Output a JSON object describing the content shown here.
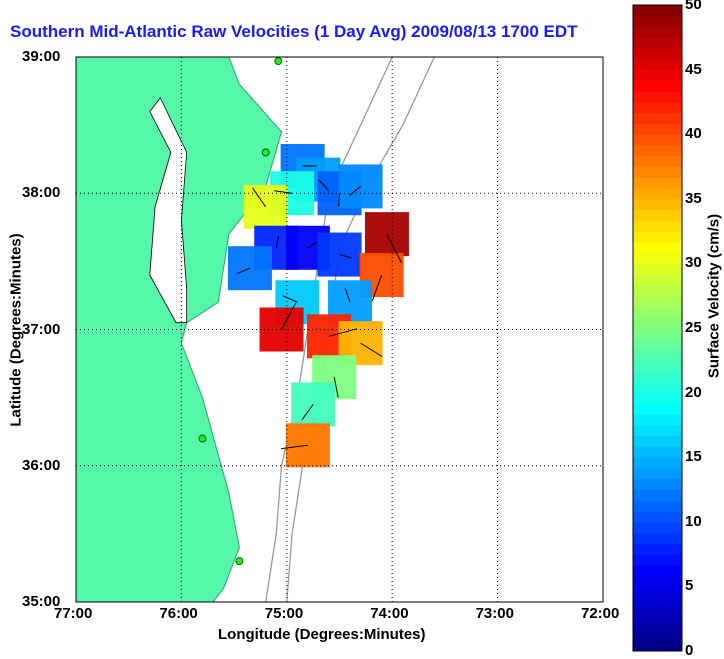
{
  "chart_data": {
    "type": "heatmap",
    "title": "Southern Mid-Atlantic Raw Velocities (1 Day Avg) 2009/08/13 1700 EDT",
    "xlabel": "Longitude (Degrees:Minutes)",
    "ylabel": "Latitude (Degrees:Minutes)",
    "x_ticks": [
      "77:00",
      "76:00",
      "75:00",
      "74:00",
      "73:00",
      "72:00"
    ],
    "y_ticks": [
      "39:00",
      "38:00",
      "37:00",
      "36:00",
      "35:00"
    ],
    "xlim": [
      -77,
      -72
    ],
    "ylim": [
      35,
      39
    ],
    "grid": true,
    "colorbar": {
      "label": "Surface Velocity (cm/s)",
      "ticks": [
        "0",
        "5",
        "10",
        "15",
        "20",
        "25",
        "30",
        "35",
        "40",
        "45",
        "50"
      ],
      "range": [
        0,
        50
      ]
    },
    "velocity_cells": [
      {
        "lon": -74.85,
        "lat": 38.2,
        "speed": 12
      },
      {
        "lon": -74.7,
        "lat": 38.1,
        "speed": 14
      },
      {
        "lon": -74.5,
        "lat": 38.0,
        "speed": 11
      },
      {
        "lon": -74.3,
        "lat": 38.05,
        "speed": 13
      },
      {
        "lon": -74.95,
        "lat": 38.0,
        "speed": 20
      },
      {
        "lon": -75.2,
        "lat": 37.9,
        "speed": 30
      },
      {
        "lon": -75.1,
        "lat": 37.6,
        "speed": 8
      },
      {
        "lon": -74.8,
        "lat": 37.6,
        "speed": 6
      },
      {
        "lon": -74.5,
        "lat": 37.55,
        "speed": 9
      },
      {
        "lon": -74.05,
        "lat": 37.7,
        "speed": 48
      },
      {
        "lon": -74.1,
        "lat": 37.4,
        "speed": 40
      },
      {
        "lon": -75.35,
        "lat": 37.45,
        "speed": 12
      },
      {
        "lon": -74.9,
        "lat": 37.2,
        "speed": 16
      },
      {
        "lon": -74.4,
        "lat": 37.2,
        "speed": 14
      },
      {
        "lon": -75.05,
        "lat": 37.0,
        "speed": 45
      },
      {
        "lon": -74.6,
        "lat": 36.95,
        "speed": 42
      },
      {
        "lon": -74.3,
        "lat": 36.9,
        "speed": 35
      },
      {
        "lon": -74.55,
        "lat": 36.65,
        "speed": 25
      },
      {
        "lon": -74.75,
        "lat": 36.45,
        "speed": 22
      },
      {
        "lon": -74.8,
        "lat": 36.15,
        "speed": 38
      }
    ]
  }
}
